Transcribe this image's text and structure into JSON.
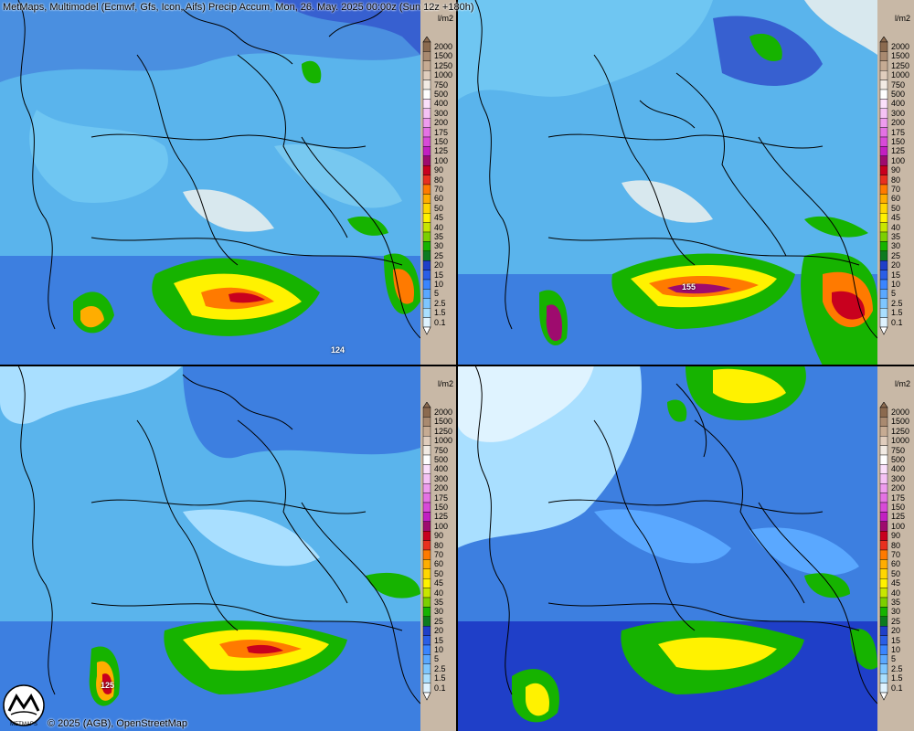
{
  "header": {
    "title": "MetMaps, Multimodel (Ecmwf, Gfs, Icon, Aifs) Precip Accum, Mon, 26. May. 2025 00:00z (Sun 12z +180h)"
  },
  "footer": {
    "copyright": "© 2025 (AGB), OpenStreetMap",
    "logo_text": "METMAPS"
  },
  "legend": {
    "unit": "l/m2",
    "levels": [
      "2000",
      "1500",
      "1250",
      "1000",
      "750",
      "500",
      "400",
      "300",
      "200",
      "175",
      "150",
      "125",
      "100",
      "90",
      "80",
      "70",
      "60",
      "50",
      "45",
      "40",
      "35",
      "30",
      "25",
      "20",
      "15",
      "10",
      "5",
      "2.5",
      "1.5",
      "0.1"
    ],
    "colors": [
      "#8b6a4f",
      "#a98a70",
      "#c6ab93",
      "#e0cdbd",
      "#f2ebe4",
      "#ffffff",
      "#fbe0fb",
      "#f5c2f5",
      "#ee9cee",
      "#e472e4",
      "#d84ad8",
      "#c21fc2",
      "#9e0b6e",
      "#c8001e",
      "#e8301e",
      "#ff7a00",
      "#ffad00",
      "#ffd600",
      "#fff200",
      "#c8e600",
      "#7ccf00",
      "#16b300",
      "#0d7a1f",
      "#1f3fc8",
      "#2a5ee6",
      "#3a85ff",
      "#5aa8ff",
      "#7ec6ff",
      "#a9dfff",
      "#dff3ff"
    ]
  },
  "panels": [
    {
      "id": "ecmwf",
      "max_label": "124"
    },
    {
      "id": "gfs",
      "max_label": "155"
    },
    {
      "id": "icon",
      "max_label": "125"
    },
    {
      "id": "aifs",
      "max_label": ""
    }
  ]
}
